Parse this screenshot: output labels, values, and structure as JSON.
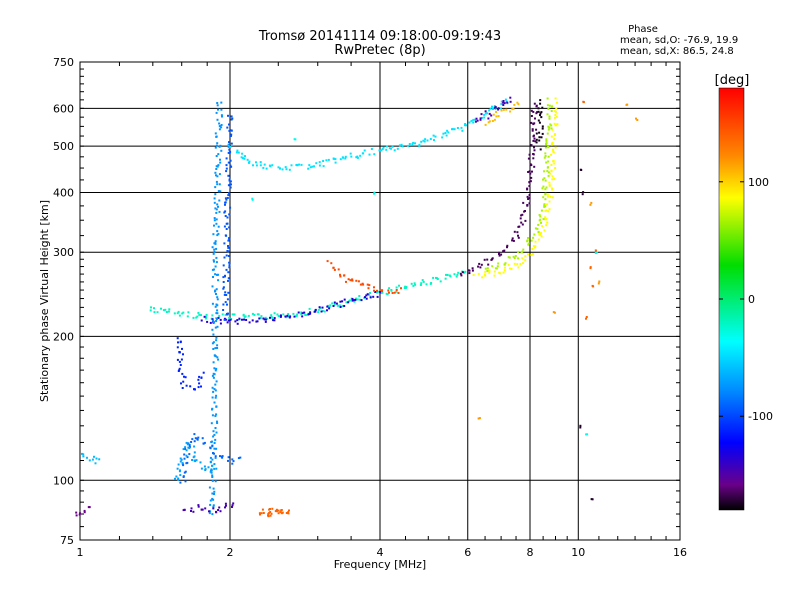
{
  "chart_data": {
    "type": "scatter",
    "title": "Tromsø 20141114 09:18:00-09:19:43",
    "subtitle": "RwPretec (8p)",
    "xlabel": "Frequency [MHz]",
    "ylabel": "Stationary phase Virtual Height [km]",
    "x_scale": "log",
    "y_scale": "log",
    "xlim": [
      1,
      16
    ],
    "ylim": [
      75,
      750
    ],
    "x_ticks": [
      1,
      2,
      4,
      6,
      8,
      10,
      16
    ],
    "y_ticks": [
      75,
      100,
      200,
      300,
      400,
      500,
      600,
      750
    ],
    "grid": true,
    "phase_stats": {
      "heading": "Phase",
      "line_o": "mean, sd,O: -76.9, 19.9",
      "line_x": "mean, sd,X:  86.5, 24.8"
    },
    "colorbar": {
      "label": "[deg]",
      "range": [
        -180,
        180
      ],
      "ticks": [
        100,
        0,
        -100
      ]
    },
    "series": [
      {
        "kind": "line",
        "phase": -150,
        "points": [
          [
            0.98,
            85
          ],
          [
            1.05,
            88
          ]
        ]
      },
      {
        "kind": "line",
        "phase": -60,
        "points": [
          [
            1.0,
            113
          ],
          [
            1.1,
            110
          ]
        ]
      },
      {
        "kind": "line",
        "phase": -20,
        "points": [
          [
            1.38,
            230
          ],
          [
            1.55,
            225
          ],
          [
            1.7,
            222
          ],
          [
            1.85,
            222
          ],
          [
            2.1,
            220
          ],
          [
            2.5,
            222
          ],
          [
            3.0,
            228
          ],
          [
            3.5,
            238
          ],
          [
            4.0,
            248
          ],
          [
            4.5,
            256
          ],
          [
            5.0,
            262
          ],
          [
            5.5,
            268
          ],
          [
            6.0,
            272
          ]
        ]
      },
      {
        "kind": "line",
        "phase": -130,
        "points": [
          [
            1.75,
            218
          ],
          [
            2.0,
            216
          ],
          [
            2.4,
            218
          ],
          [
            2.8,
            224
          ],
          [
            3.2,
            232
          ],
          [
            3.6,
            240
          ],
          [
            4.0,
            248
          ]
        ]
      },
      {
        "kind": "line",
        "phase": -75,
        "points": [
          [
            1.82,
            85
          ],
          [
            1.84,
            100
          ],
          [
            1.85,
            130
          ],
          [
            1.86,
            170
          ],
          [
            1.86,
            200
          ],
          [
            1.86,
            250
          ],
          [
            1.86,
            300
          ],
          [
            1.87,
            350
          ],
          [
            1.88,
            400
          ],
          [
            1.88,
            450
          ],
          [
            1.89,
            500
          ],
          [
            1.89,
            560
          ],
          [
            1.9,
            630
          ]
        ]
      },
      {
        "kind": "line",
        "phase": -95,
        "points": [
          [
            1.95,
            220
          ],
          [
            1.95,
            240
          ],
          [
            1.96,
            280
          ],
          [
            1.96,
            330
          ],
          [
            1.97,
            400
          ],
          [
            1.98,
            450
          ],
          [
            1.98,
            500
          ],
          [
            1.99,
            560
          ],
          [
            2.0,
            590
          ]
        ]
      },
      {
        "kind": "line",
        "phase": -45,
        "points": [
          [
            2.0,
            500
          ],
          [
            2.2,
            465
          ],
          [
            2.5,
            450
          ],
          [
            3.0,
            460
          ],
          [
            3.5,
            478
          ],
          [
            4.0,
            492
          ],
          [
            4.6,
            505
          ],
          [
            5.2,
            525
          ],
          [
            5.8,
            550
          ],
          [
            6.3,
            575
          ],
          [
            6.8,
            605
          ],
          [
            7.3,
            630
          ]
        ]
      },
      {
        "kind": "line",
        "phase": -110,
        "points": [
          [
            1.58,
            200
          ],
          [
            1.58,
            180
          ],
          [
            1.58,
            170
          ],
          [
            1.62,
            158
          ],
          [
            1.68,
            155
          ],
          [
            1.72,
            160
          ],
          [
            1.75,
            170
          ]
        ]
      },
      {
        "kind": "line",
        "phase": -90,
        "points": [
          [
            1.6,
            100
          ],
          [
            1.62,
            110
          ],
          [
            1.65,
            120
          ],
          [
            1.7,
            125
          ],
          [
            1.8,
            118
          ],
          [
            1.9,
            112
          ],
          [
            2.0,
            110
          ],
          [
            2.1,
            112
          ]
        ]
      },
      {
        "kind": "line",
        "phase": -70,
        "points": [
          [
            1.55,
            100
          ],
          [
            1.6,
            113
          ],
          [
            1.65,
            120
          ],
          [
            1.7,
            110
          ],
          [
            1.8,
            105
          ],
          [
            1.9,
            108
          ]
        ]
      },
      {
        "kind": "line",
        "phase": -140,
        "points": [
          [
            1.6,
            86
          ],
          [
            1.7,
            88
          ],
          [
            1.9,
            87
          ],
          [
            2.05,
            90
          ]
        ]
      },
      {
        "kind": "line",
        "phase": 150,
        "points": [
          [
            3.15,
            285
          ],
          [
            3.3,
            272
          ],
          [
            3.5,
            262
          ],
          [
            3.8,
            255
          ],
          [
            4.1,
            250
          ],
          [
            4.4,
            250
          ]
        ]
      },
      {
        "kind": "line",
        "phase": -160,
        "points": [
          [
            5.8,
            272
          ],
          [
            6.2,
            278
          ],
          [
            6.6,
            288
          ],
          [
            7.0,
            300
          ],
          [
            7.4,
            320
          ],
          [
            7.7,
            350
          ],
          [
            7.9,
            400
          ],
          [
            8.0,
            450
          ],
          [
            8.05,
            500
          ],
          [
            8.1,
            560
          ],
          [
            8.15,
            630
          ]
        ]
      },
      {
        "kind": "line",
        "phase": -140,
        "points": [
          [
            6.2,
            560
          ],
          [
            6.6,
            590
          ],
          [
            7.0,
            615
          ],
          [
            7.4,
            630
          ]
        ]
      },
      {
        "kind": "line",
        "phase": 90,
        "points": [
          [
            6.2,
            270
          ],
          [
            6.6,
            272
          ],
          [
            7.0,
            275
          ],
          [
            7.5,
            283
          ],
          [
            8.0,
            300
          ],
          [
            8.4,
            330
          ],
          [
            8.7,
            380
          ],
          [
            8.85,
            450
          ],
          [
            8.9,
            500
          ],
          [
            8.92,
            560
          ],
          [
            8.95,
            630
          ]
        ]
      },
      {
        "kind": "line",
        "phase": 110,
        "points": [
          [
            6.5,
            560
          ],
          [
            6.9,
            585
          ],
          [
            7.3,
            605
          ],
          [
            7.6,
            625
          ]
        ]
      },
      {
        "kind": "line",
        "phase": 70,
        "points": [
          [
            6.5,
            275
          ],
          [
            7.0,
            285
          ],
          [
            7.6,
            300
          ],
          [
            8.2,
            330
          ],
          [
            8.5,
            380
          ],
          [
            8.6,
            450
          ],
          [
            8.65,
            500
          ],
          [
            8.7,
            560
          ],
          [
            8.75,
            630
          ]
        ]
      },
      {
        "kind": "line",
        "phase": -175,
        "points": [
          [
            8.3,
            500
          ],
          [
            8.35,
            560
          ],
          [
            8.4,
            630
          ]
        ]
      },
      {
        "kind": "cluster",
        "phase": 140,
        "points": [
          [
            2.35,
            86
          ],
          [
            2.45,
            86
          ],
          [
            2.55,
            87
          ]
        ]
      },
      {
        "kind": "dots",
        "phase": 140,
        "points": [
          [
            10.2,
            620
          ],
          [
            10.3,
            220
          ],
          [
            10.6,
            255
          ],
          [
            10.6,
            280
          ],
          [
            10.8,
            305
          ]
        ]
      },
      {
        "kind": "dots",
        "phase": -170,
        "points": [
          [
            10.1,
            450
          ],
          [
            10.2,
            400
          ],
          [
            10.6,
            92
          ],
          [
            10.1,
            130
          ]
        ]
      },
      {
        "kind": "dots",
        "phase": 120,
        "points": [
          [
            12.5,
            610
          ],
          [
            13.0,
            570
          ],
          [
            10.5,
            380
          ],
          [
            11.0,
            260
          ],
          [
            6.3,
            135
          ],
          [
            8.9,
            225
          ]
        ]
      },
      {
        "kind": "dots",
        "phase": -30,
        "points": [
          [
            10.3,
            125
          ],
          [
            10.8,
            300
          ],
          [
            3.9,
            400
          ],
          [
            2.7,
            520
          ],
          [
            2.2,
            390
          ]
        ]
      }
    ]
  }
}
